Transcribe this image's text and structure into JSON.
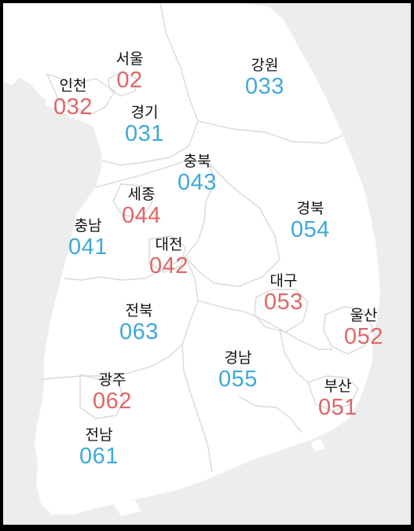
{
  "map": {
    "colors": {
      "background": "#ededed",
      "land": "#ffffff",
      "border": "#d9d9d9",
      "code_red": "#e06666",
      "code_blue": "#3fa9d9"
    },
    "regions": [
      {
        "name": "서울",
        "code": "02",
        "code_color": "red"
      },
      {
        "name": "인천",
        "code": "032",
        "code_color": "red"
      },
      {
        "name": "경기",
        "code": "031",
        "code_color": "blue"
      },
      {
        "name": "강원",
        "code": "033",
        "code_color": "blue"
      },
      {
        "name": "충북",
        "code": "043",
        "code_color": "blue"
      },
      {
        "name": "세종",
        "code": "044",
        "code_color": "red"
      },
      {
        "name": "충남",
        "code": "041",
        "code_color": "blue"
      },
      {
        "name": "대전",
        "code": "042",
        "code_color": "red"
      },
      {
        "name": "경북",
        "code": "054",
        "code_color": "blue"
      },
      {
        "name": "대구",
        "code": "053",
        "code_color": "red"
      },
      {
        "name": "전북",
        "code": "063",
        "code_color": "blue"
      },
      {
        "name": "울산",
        "code": "052",
        "code_color": "red"
      },
      {
        "name": "경남",
        "code": "055",
        "code_color": "blue"
      },
      {
        "name": "부산",
        "code": "051",
        "code_color": "red"
      },
      {
        "name": "광주",
        "code": "062",
        "code_color": "red"
      },
      {
        "name": "전남",
        "code": "061",
        "code_color": "blue"
      }
    ]
  }
}
